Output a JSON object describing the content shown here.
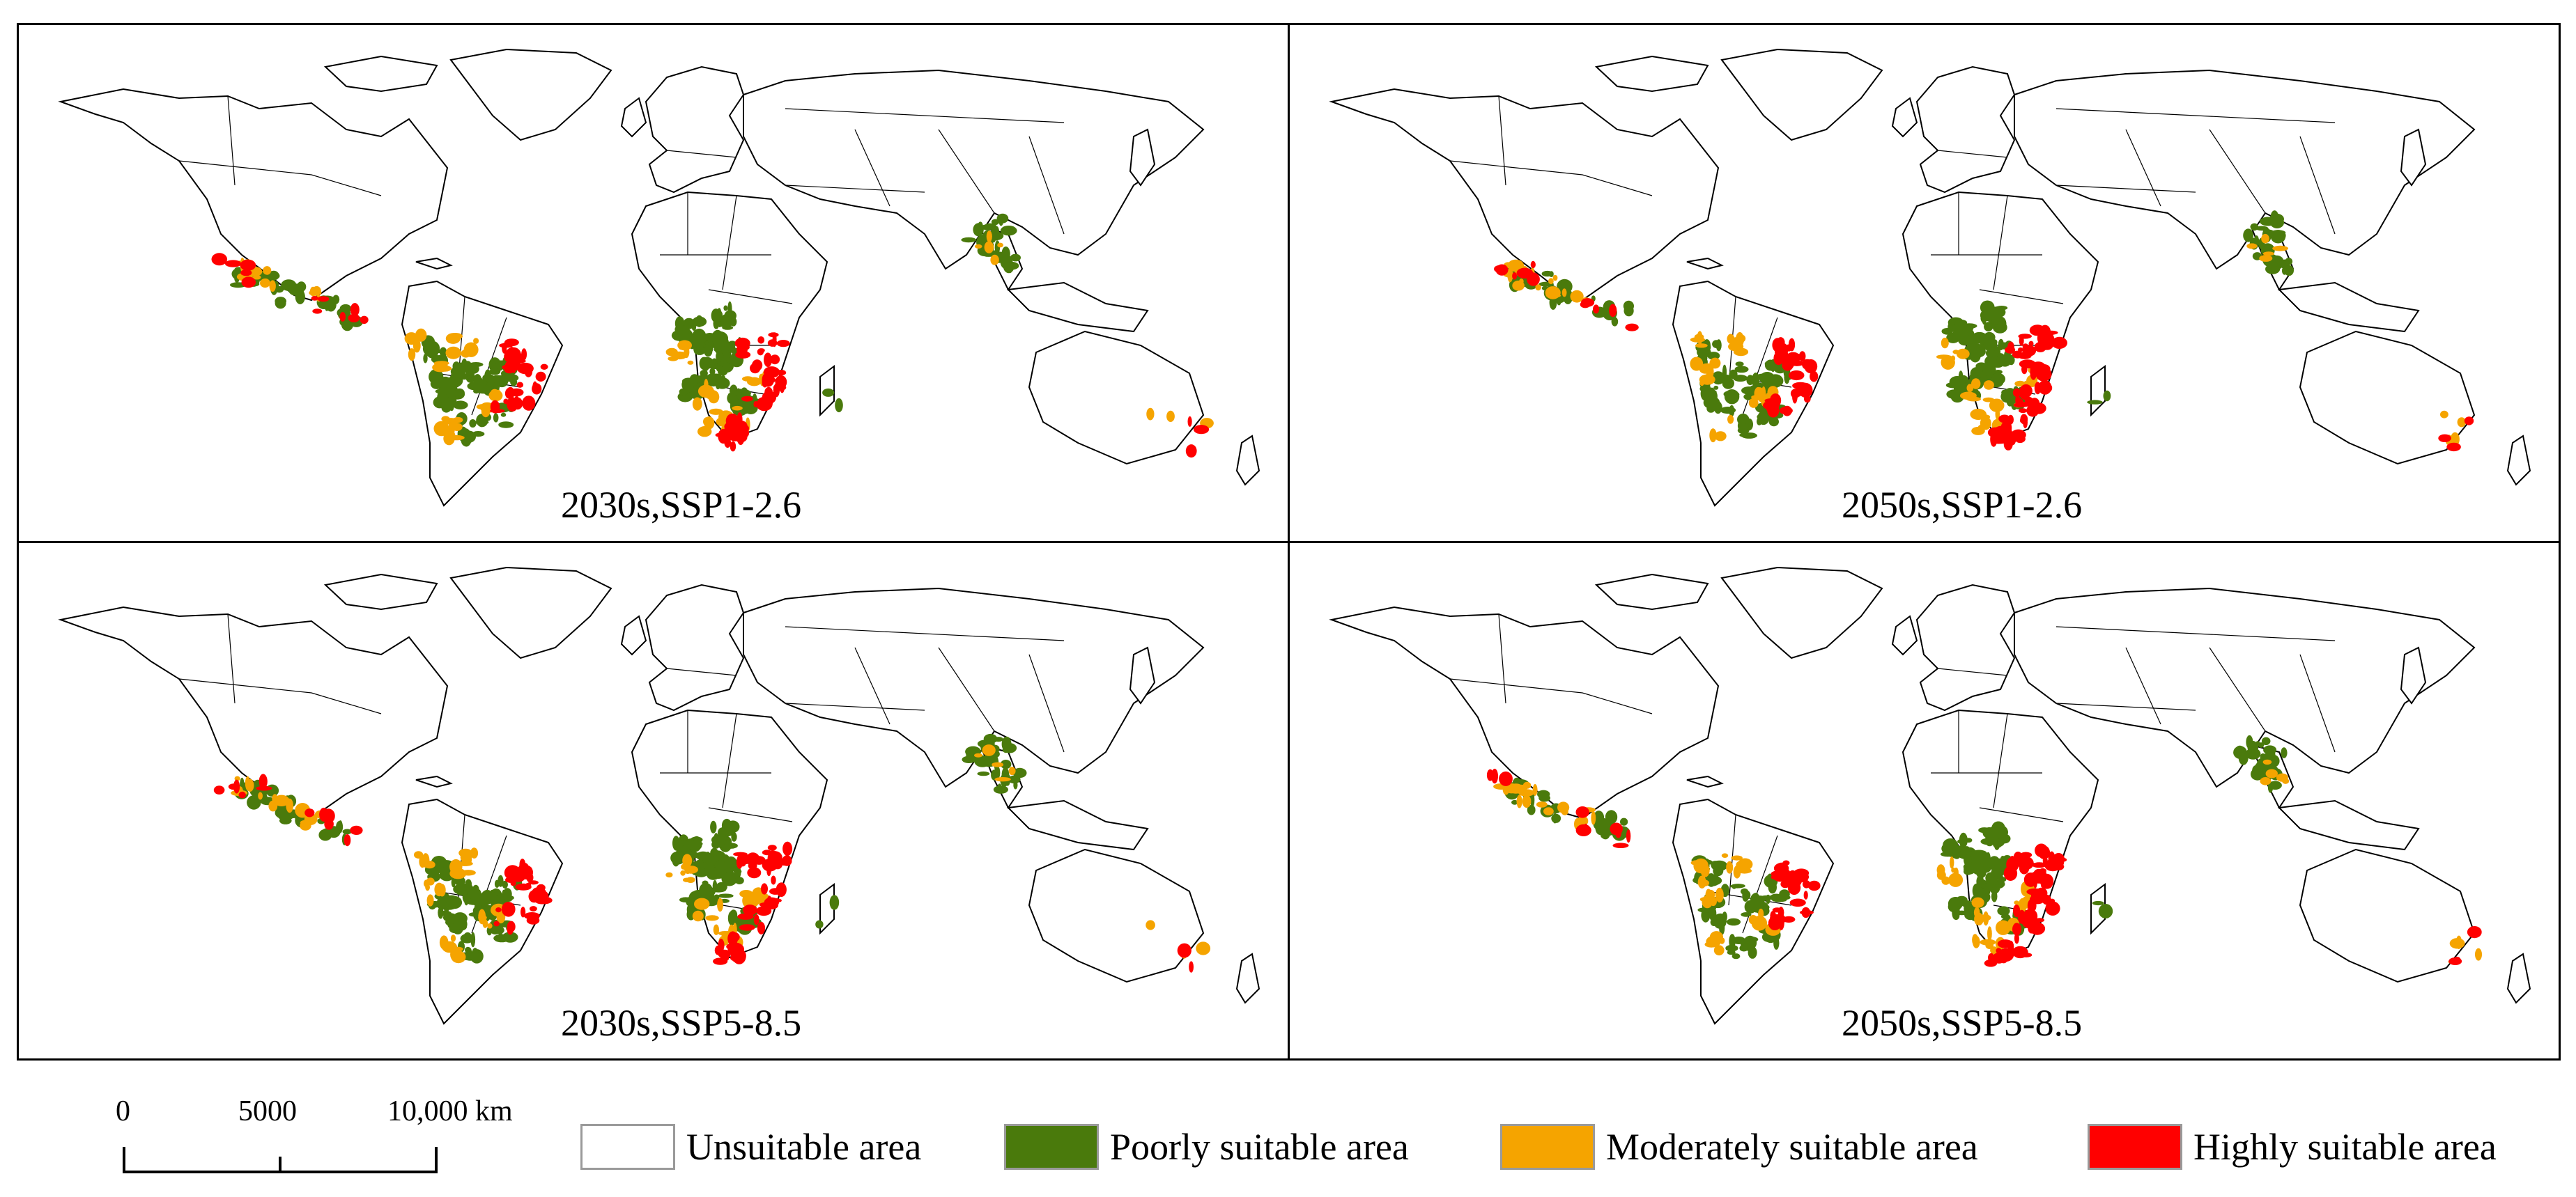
{
  "panels": [
    {
      "label": "2030s,SSP1-2.6"
    },
    {
      "label": "2050s,SSP1-2.6"
    },
    {
      "label": "2030s,SSP5-8.5"
    },
    {
      "label": "2050s,SSP5-8.5"
    }
  ],
  "scalebar": {
    "ticks": [
      "0",
      "5000",
      "10,000 km"
    ]
  },
  "legend": [
    {
      "label": "Unsuitable area",
      "color": "#ffffff"
    },
    {
      "label": "Poorly suitable area",
      "color": "#4a7a0c"
    },
    {
      "label": "Moderately suitable area",
      "color": "#f5a400"
    },
    {
      "label": "Highly suitable area",
      "color": "#ff0000"
    }
  ]
}
